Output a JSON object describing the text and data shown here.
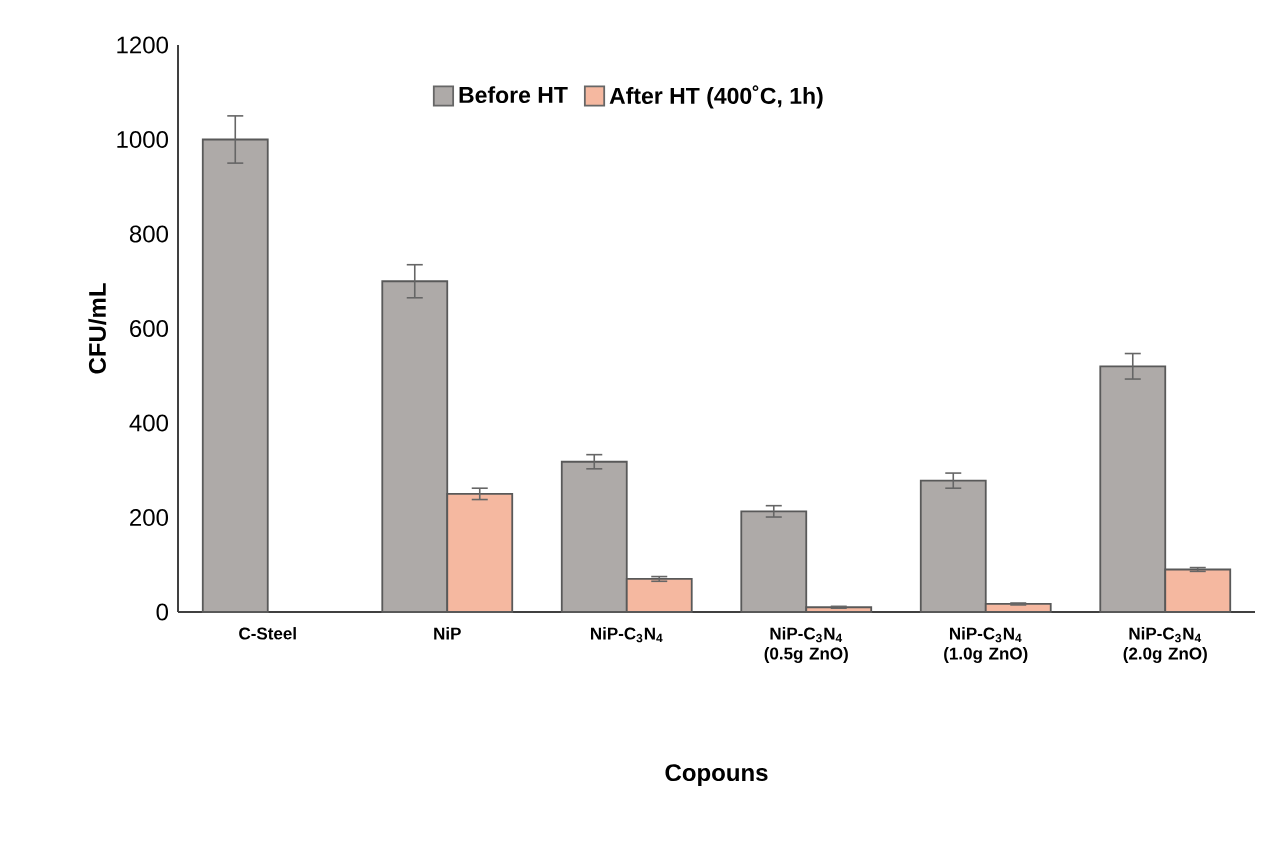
{
  "chart_data": {
    "type": "bar",
    "xlabel": "Copouns",
    "ylabel": "CFU/mL",
    "categories": [
      "C-Steel",
      "NiP",
      "NiP-C$_{3}$N$_{4}$",
      "NiP-C$_{3}$N$_{4}$ (0.5g ZnO)",
      "NiP-C$_{3}$N$_{4}$ (1.0g ZnO)",
      "NiP-C$_{3}$N$_{4}$ (2.0g ZnO)"
    ],
    "series": [
      {
        "name": "Before HT",
        "color": "#aeaaa8",
        "values": [
          1000,
          700,
          318,
          213,
          278,
          520
        ],
        "errors": [
          50,
          35,
          15,
          12,
          16,
          27
        ]
      },
      {
        "name": "After HT (400˚C, 1h)",
        "color": "#f5b8a0",
        "values": [
          null,
          250,
          70,
          10,
          17,
          90
        ],
        "errors": [
          null,
          12,
          5,
          2,
          2,
          4
        ]
      }
    ],
    "ylim": [
      0,
      1200
    ],
    "yticks": [
      0,
      200,
      400,
      600,
      800,
      1000,
      1200
    ],
    "grid": false,
    "legend": "top"
  }
}
